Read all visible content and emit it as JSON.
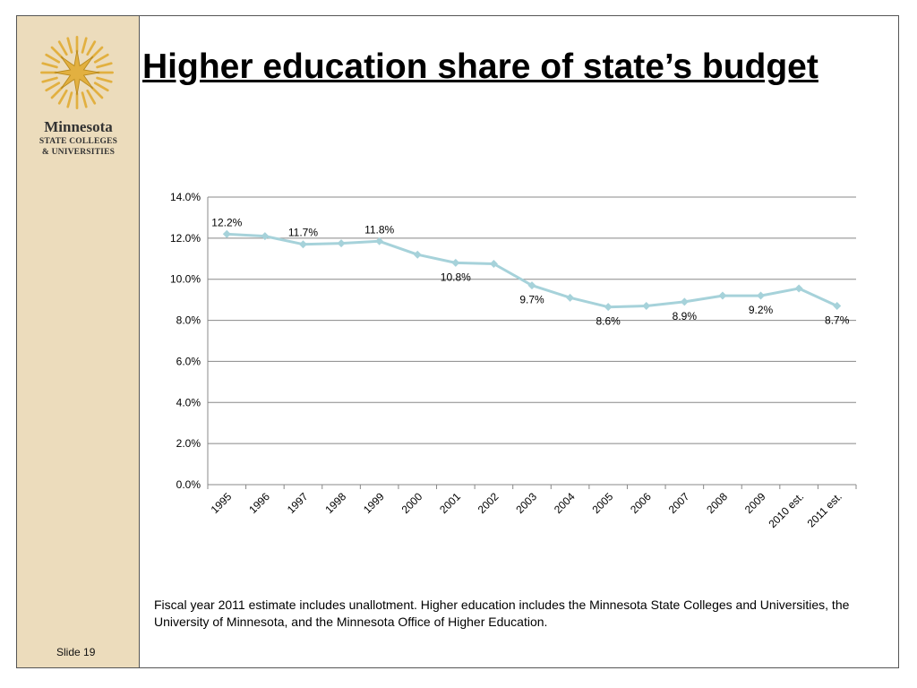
{
  "slide": {
    "title": "Higher education share of state’s budget",
    "footnote": "Fiscal year 2011 estimate includes unallotment. Higher education includes the Minnesota State Colleges and Universities, the University of Minnesota, and the Minnesota Office of Higher Education.",
    "slide_number": "Slide 19"
  },
  "sidebar": {
    "org_line1": "Minnesota",
    "org_line2": "STATE COLLEGES",
    "org_line3": "& UNIVERSITIES",
    "logo_icon": "star-burst-logo-icon"
  },
  "colors": {
    "sidebar_bg": "#ecdcbc",
    "line": "#a6d2da",
    "logo": "#e2b040",
    "grid": "#888888"
  },
  "chart_data": {
    "type": "line",
    "categories": [
      "1995",
      "1996",
      "1997",
      "1998",
      "1999",
      "2000",
      "2001",
      "2002",
      "2003",
      "2004",
      "2005",
      "2006",
      "2007",
      "2008",
      "2009",
      "2010 est.",
      "2011 est."
    ],
    "series": [
      {
        "values": [
          12.2,
          12.1,
          11.7,
          11.75,
          11.85,
          11.2,
          10.8,
          10.75,
          9.7,
          9.1,
          8.65,
          8.7,
          8.9,
          9.2,
          9.2,
          9.55,
          8.7
        ]
      }
    ],
    "data_labels": [
      {
        "index": 0,
        "text": "12.2%",
        "pos": "above"
      },
      {
        "index": 2,
        "text": "11.7%",
        "pos": "above"
      },
      {
        "index": 4,
        "text": "11.8%",
        "pos": "above"
      },
      {
        "index": 6,
        "text": "10.8%",
        "pos": "below"
      },
      {
        "index": 8,
        "text": "9.7%",
        "pos": "below"
      },
      {
        "index": 10,
        "text": "8.6%",
        "pos": "below"
      },
      {
        "index": 12,
        "text": "8.9%",
        "pos": "below"
      },
      {
        "index": 14,
        "text": "9.2%",
        "pos": "below"
      },
      {
        "index": 16,
        "text": "8.7%",
        "pos": "below"
      }
    ],
    "y_ticks": [
      "0.0%",
      "2.0%",
      "4.0%",
      "6.0%",
      "8.0%",
      "10.0%",
      "12.0%",
      "14.0%"
    ],
    "ylim": [
      0,
      14
    ],
    "grid": true,
    "legend": "none"
  }
}
